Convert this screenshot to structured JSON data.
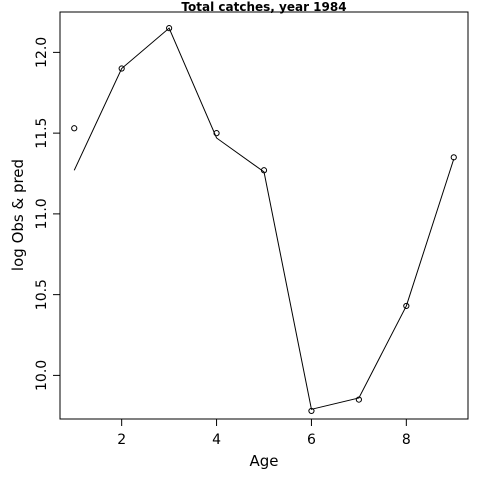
{
  "chart_data": {
    "type": "line",
    "title": "Total catches, year 1984",
    "xlabel": "Age",
    "ylabel": "log Obs & pred",
    "x": [
      1,
      2,
      3,
      4,
      5,
      6,
      7,
      8,
      9
    ],
    "xlim": [
      0.7,
      9.3
    ],
    "ylim": [
      9.73,
      12.25
    ],
    "x_ticks": [
      2,
      4,
      6,
      8
    ],
    "x_tick_labels": [
      "2",
      "4",
      "6",
      "8"
    ],
    "y_ticks": [
      10.0,
      10.5,
      11.0,
      11.5,
      12.0
    ],
    "y_tick_labels": [
      "10.0",
      "10.5",
      "11.0",
      "11.5",
      "12.0"
    ],
    "grid": false,
    "series": [
      {
        "style": "points",
        "marker": "open-circle",
        "values": [
          11.53,
          11.9,
          12.15,
          11.5,
          11.27,
          9.78,
          9.85,
          10.43,
          11.35
        ]
      },
      {
        "style": "line",
        "values": [
          11.27,
          11.9,
          12.15,
          11.47,
          11.26,
          9.79,
          9.86,
          10.43,
          11.34
        ]
      }
    ]
  }
}
